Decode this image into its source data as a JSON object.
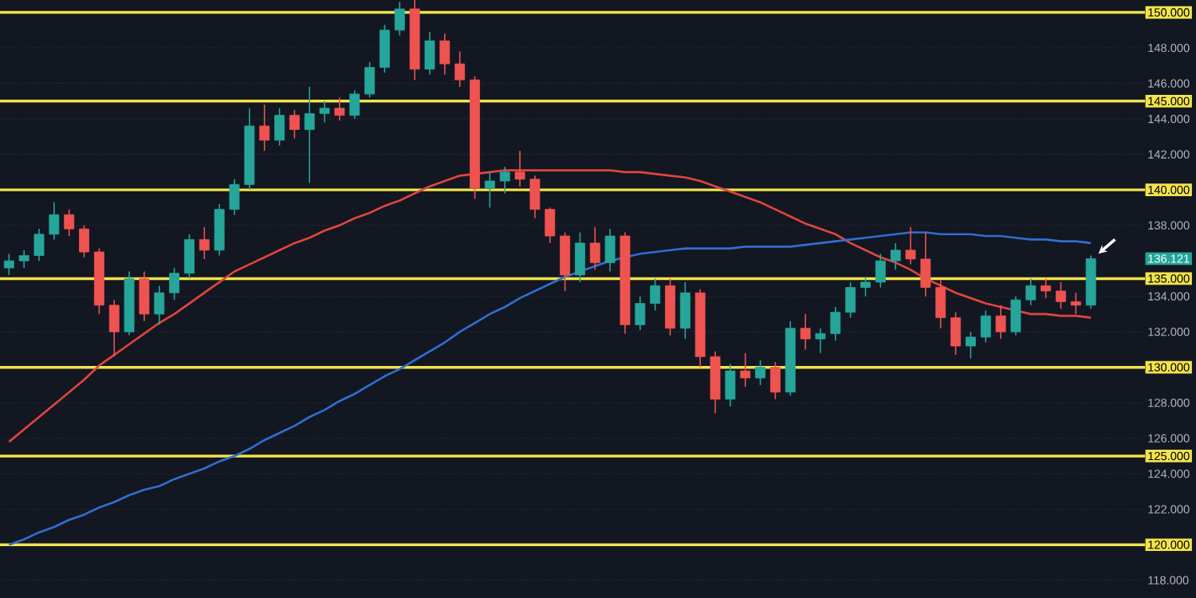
{
  "chart_data": {
    "type": "candlestick",
    "categories": [
      null,
      null,
      null,
      null,
      null,
      null,
      null,
      null,
      null,
      null,
      null,
      null,
      null,
      null,
      null,
      null,
      null,
      null,
      null,
      null,
      null,
      null,
      null,
      null,
      null,
      null,
      null,
      null,
      null,
      null,
      null,
      null,
      null,
      null,
      null,
      null,
      null,
      null,
      null,
      null,
      null,
      null,
      null,
      null,
      null,
      null,
      null,
      null,
      null,
      null,
      null,
      null,
      null,
      null,
      null,
      null,
      null,
      null,
      null,
      null,
      null,
      null,
      null,
      null,
      null,
      null,
      null,
      null,
      null,
      null,
      null,
      null,
      null
    ],
    "ohlc": [
      [
        135.6,
        136.4,
        135.2,
        136.0
      ],
      [
        136.0,
        136.6,
        135.6,
        136.3
      ],
      [
        136.3,
        137.8,
        136.0,
        137.5
      ],
      [
        137.5,
        139.3,
        137.2,
        138.6
      ],
      [
        138.6,
        138.9,
        137.4,
        137.8
      ],
      [
        137.8,
        138.0,
        136.2,
        136.5
      ],
      [
        136.5,
        136.7,
        133.0,
        133.5
      ],
      [
        133.5,
        133.8,
        130.6,
        132.0
      ],
      [
        132.0,
        135.4,
        131.8,
        135.0
      ],
      [
        135.0,
        135.4,
        132.6,
        133.0
      ],
      [
        133.0,
        134.6,
        132.4,
        134.2
      ],
      [
        134.2,
        135.6,
        133.8,
        135.3
      ],
      [
        135.3,
        137.5,
        135.0,
        137.2
      ],
      [
        137.2,
        137.9,
        136.1,
        136.6
      ],
      [
        136.6,
        139.2,
        136.3,
        138.9
      ],
      [
        138.9,
        140.6,
        138.6,
        140.3
      ],
      [
        140.3,
        144.6,
        140.0,
        143.6
      ],
      [
        143.6,
        144.8,
        142.2,
        142.8
      ],
      [
        142.8,
        144.6,
        142.5,
        144.2
      ],
      [
        144.2,
        144.5,
        142.9,
        143.4
      ],
      [
        143.4,
        145.8,
        140.4,
        144.3
      ],
      [
        144.3,
        145.0,
        143.8,
        144.6
      ],
      [
        144.6,
        145.2,
        143.9,
        144.2
      ],
      [
        144.2,
        145.6,
        144.0,
        145.4
      ],
      [
        145.4,
        147.2,
        145.2,
        146.9
      ],
      [
        146.9,
        149.3,
        146.6,
        149.0
      ],
      [
        149.0,
        150.6,
        148.7,
        150.2
      ],
      [
        150.2,
        150.7,
        146.2,
        146.8
      ],
      [
        146.8,
        148.9,
        146.5,
        148.4
      ],
      [
        148.4,
        148.8,
        146.5,
        147.1
      ],
      [
        147.1,
        147.8,
        145.8,
        146.2
      ],
      [
        146.2,
        146.4,
        139.5,
        140.1
      ],
      [
        140.1,
        141.0,
        139.0,
        140.5
      ],
      [
        140.5,
        141.3,
        139.8,
        141.0
      ],
      [
        141.0,
        142.2,
        140.2,
        140.6
      ],
      [
        140.6,
        140.8,
        138.4,
        138.9
      ],
      [
        138.9,
        139.0,
        137.0,
        137.4
      ],
      [
        137.4,
        137.6,
        134.3,
        135.2
      ],
      [
        135.2,
        137.6,
        134.8,
        137.0
      ],
      [
        137.0,
        137.9,
        135.5,
        135.9
      ],
      [
        135.9,
        137.8,
        135.4,
        137.4
      ],
      [
        137.4,
        137.6,
        131.9,
        132.4
      ],
      [
        132.4,
        134.0,
        132.1,
        133.6
      ],
      [
        133.6,
        135.0,
        133.2,
        134.6
      ],
      [
        134.6,
        135.0,
        131.8,
        132.2
      ],
      [
        132.2,
        134.8,
        131.6,
        134.2
      ],
      [
        134.2,
        134.4,
        130.0,
        130.6
      ],
      [
        130.6,
        130.9,
        127.4,
        128.2
      ],
      [
        128.2,
        130.2,
        127.8,
        129.8
      ],
      [
        129.8,
        130.8,
        128.9,
        129.4
      ],
      [
        129.4,
        130.4,
        129.0,
        130.0
      ],
      [
        130.0,
        130.3,
        128.2,
        128.6
      ],
      [
        128.6,
        132.6,
        128.4,
        132.2
      ],
      [
        132.2,
        133.0,
        131.0,
        131.6
      ],
      [
        131.6,
        132.2,
        130.8,
        131.9
      ],
      [
        131.9,
        133.4,
        131.5,
        133.1
      ],
      [
        133.1,
        134.8,
        132.8,
        134.5
      ],
      [
        134.5,
        135.1,
        134.0,
        134.8
      ],
      [
        134.8,
        136.4,
        134.5,
        136.0
      ],
      [
        136.0,
        137.0,
        135.5,
        136.6
      ],
      [
        136.6,
        137.9,
        135.8,
        136.1
      ],
      [
        136.1,
        137.6,
        134.0,
        134.5
      ],
      [
        134.5,
        134.9,
        132.2,
        132.8
      ],
      [
        132.8,
        133.1,
        130.7,
        131.2
      ],
      [
        131.2,
        132.0,
        130.5,
        131.7
      ],
      [
        131.7,
        133.2,
        131.4,
        132.9
      ],
      [
        132.9,
        133.5,
        131.6,
        132.0
      ],
      [
        132.0,
        134.0,
        131.8,
        133.8
      ],
      [
        133.8,
        135.0,
        133.5,
        134.6
      ],
      [
        134.6,
        135.0,
        133.9,
        134.3
      ],
      [
        134.3,
        134.8,
        133.3,
        133.7
      ],
      [
        133.7,
        134.2,
        133.0,
        133.5
      ],
      [
        133.5,
        136.3,
        133.3,
        136.121
      ]
    ],
    "colors": [
      "#26a69a",
      "#26a69a",
      "#26a69a",
      "#26a69a",
      "#ef5350",
      "#ef5350",
      "#ef5350",
      "#ef5350",
      "#26a69a",
      "#ef5350",
      "#26a69a",
      "#26a69a",
      "#26a69a",
      "#ef5350",
      "#26a69a",
      "#26a69a",
      "#26a69a",
      "#ef5350",
      "#26a69a",
      "#ef5350",
      "#26a69a",
      "#26a69a",
      "#ef5350",
      "#26a69a",
      "#26a69a",
      "#26a69a",
      "#26a69a",
      "#ef5350",
      "#26a69a",
      "#ef5350",
      "#ef5350",
      "#ef5350",
      "#26a69a",
      "#26a69a",
      "#ef5350",
      "#ef5350",
      "#ef5350",
      "#ef5350",
      "#26a69a",
      "#ef5350",
      "#26a69a",
      "#ef5350",
      "#26a69a",
      "#26a69a",
      "#ef5350",
      "#26a69a",
      "#ef5350",
      "#ef5350",
      "#26a69a",
      "#ef5350",
      "#26a69a",
      "#ef5350",
      "#26a69a",
      "#ef5350",
      "#26a69a",
      "#26a69a",
      "#26a69a",
      "#26a69a",
      "#26a69a",
      "#26a69a",
      "#ef5350",
      "#ef5350",
      "#ef5350",
      "#ef5350",
      "#26a69a",
      "#26a69a",
      "#ef5350",
      "#26a69a",
      "#26a69a",
      "#ef5350",
      "#ef5350",
      "#ef5350",
      "#26a69a"
    ],
    "series": [
      {
        "type": "line",
        "color": "#e0463c",
        "values": [
          125.8,
          126.5,
          127.2,
          127.9,
          128.6,
          129.3,
          130.1,
          130.7,
          131.3,
          131.9,
          132.5,
          133.0,
          133.6,
          134.2,
          134.8,
          135.4,
          135.8,
          136.2,
          136.6,
          137.0,
          137.3,
          137.7,
          138.0,
          138.4,
          138.7,
          139.1,
          139.4,
          139.8,
          140.2,
          140.5,
          140.8,
          140.9,
          141.0,
          141.1,
          141.1,
          141.1,
          141.1,
          141.1,
          141.1,
          141.1,
          141.1,
          141.0,
          141.0,
          140.9,
          140.8,
          140.7,
          140.5,
          140.2,
          139.9,
          139.6,
          139.3,
          138.9,
          138.5,
          138.1,
          137.8,
          137.5,
          137.0,
          136.6,
          136.2,
          135.9,
          135.5,
          135.0,
          134.6,
          134.2,
          133.9,
          133.6,
          133.4,
          133.2,
          133.0,
          133.0,
          132.9,
          132.9,
          132.8
        ]
      },
      {
        "type": "line",
        "color": "#2f6fd0",
        "values": [
          120.0,
          120.3,
          120.7,
          121.0,
          121.4,
          121.7,
          122.1,
          122.4,
          122.8,
          123.1,
          123.3,
          123.7,
          124.0,
          124.3,
          124.7,
          125.0,
          125.4,
          125.9,
          126.3,
          126.7,
          127.2,
          127.6,
          128.1,
          128.5,
          129.0,
          129.5,
          129.9,
          130.4,
          130.9,
          131.4,
          132.0,
          132.5,
          133.0,
          133.4,
          133.9,
          134.3,
          134.7,
          135.1,
          135.4,
          135.7,
          136.0,
          136.2,
          136.4,
          136.5,
          136.6,
          136.7,
          136.7,
          136.7,
          136.7,
          136.8,
          136.8,
          136.8,
          136.8,
          136.9,
          137.0,
          137.1,
          137.2,
          137.3,
          137.4,
          137.5,
          137.6,
          137.6,
          137.5,
          137.5,
          137.5,
          137.4,
          137.4,
          137.3,
          137.2,
          137.2,
          137.1,
          137.1,
          137.0
        ]
      }
    ],
    "ylim": [
      117,
      150.7
    ],
    "yticks": [
      {
        "value": 118,
        "label": "118.000"
      },
      {
        "value": 122,
        "label": "122.000"
      },
      {
        "value": 124,
        "label": "124.000"
      },
      {
        "value": 126,
        "label": "126.000"
      },
      {
        "value": 128,
        "label": "128.000"
      },
      {
        "value": 132,
        "label": "132.000"
      },
      {
        "value": 134,
        "label": "134.000"
      },
      {
        "value": 138,
        "label": "138.000"
      },
      {
        "value": 142,
        "label": "142.000"
      },
      {
        "value": 144,
        "label": "144.000"
      },
      {
        "value": 146,
        "label": "146.000"
      },
      {
        "value": 148,
        "label": "148.000"
      }
    ],
    "ref_lines": [
      {
        "axis": "y",
        "value": 150,
        "label": "150.000",
        "color": "#f2e34c"
      },
      {
        "axis": "y",
        "value": 145,
        "label": "145.000",
        "color": "#f2e34c"
      },
      {
        "axis": "y",
        "value": 140,
        "label": "140.000",
        "color": "#f2e34c"
      },
      {
        "axis": "y",
        "value": 135,
        "label": "135.000",
        "color": "#f2e34c"
      },
      {
        "axis": "y",
        "value": 130,
        "label": "130.000",
        "color": "#f2e34c"
      },
      {
        "axis": "y",
        "value": 125,
        "label": "125.000",
        "color": "#f2e34c"
      },
      {
        "axis": "y",
        "value": 120,
        "label": "120.000",
        "color": "#f2e34c"
      }
    ],
    "annotations": [
      "136.121"
    ],
    "grid": "y",
    "tick_labels": "y"
  }
}
